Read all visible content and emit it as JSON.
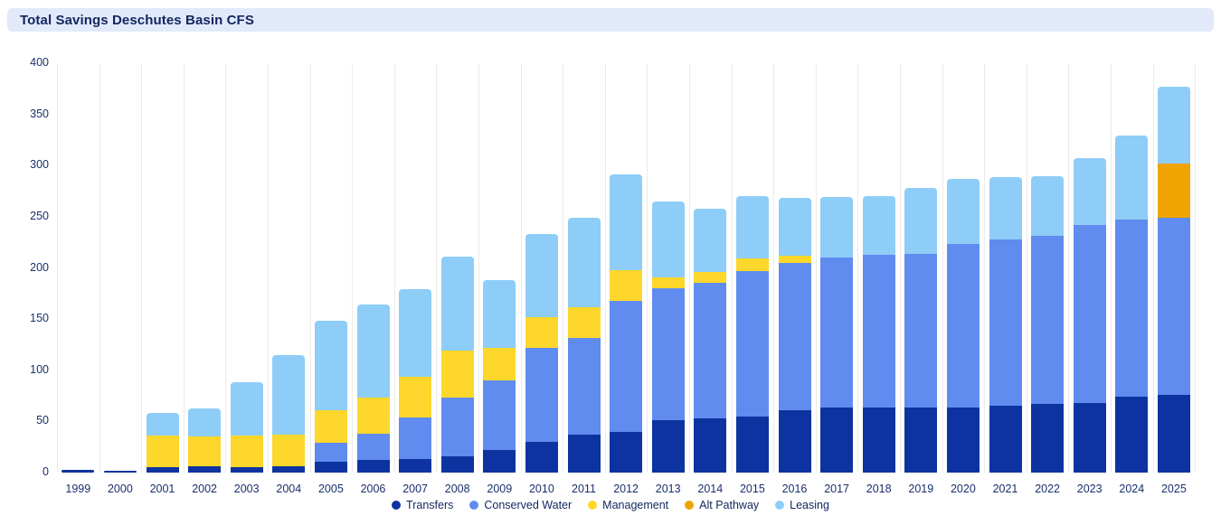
{
  "header": {
    "title": "Total Savings Deschutes Basin CFS"
  },
  "chart_data": {
    "type": "bar",
    "stacked": true,
    "title": "Total Savings Deschutes Basin CFS",
    "xlabel": "",
    "ylabel": "",
    "ylim": [
      0,
      400
    ],
    "yticks": [
      0,
      50,
      100,
      150,
      200,
      250,
      300,
      350,
      400
    ],
    "grid": "vertical-separators-only",
    "legend_position": "bottom",
    "categories": [
      "1999",
      "2000",
      "2001",
      "2002",
      "2003",
      "2004",
      "2005",
      "2006",
      "2007",
      "2008",
      "2009",
      "2010",
      "2011",
      "2012",
      "2013",
      "2014",
      "2015",
      "2016",
      "2017",
      "2018",
      "2019",
      "2020",
      "2021",
      "2022",
      "2023",
      "2024",
      "2025"
    ],
    "series": [
      {
        "name": "Transfers",
        "color": "#0d33a0",
        "values": [
          3,
          2,
          5,
          6,
          5,
          6,
          11,
          12,
          13,
          16,
          22,
          30,
          37,
          40,
          51,
          53,
          55,
          61,
          64,
          64,
          64,
          64,
          65,
          67,
          68,
          74,
          76
        ]
      },
      {
        "name": "Conserved Water",
        "color": "#5f8cee",
        "values": [
          0,
          0,
          0,
          0,
          0,
          0,
          18,
          26,
          41,
          57,
          68,
          92,
          95,
          128,
          129,
          132,
          142,
          144,
          146,
          149,
          150,
          159,
          163,
          164,
          174,
          173,
          173
        ]
      },
      {
        "name": "Management",
        "color": "#fdd72b",
        "values": [
          0,
          0,
          31,
          29,
          31,
          31,
          32,
          35,
          40,
          46,
          32,
          30,
          30,
          30,
          11,
          11,
          12,
          7,
          0,
          0,
          0,
          0,
          0,
          0,
          0,
          0,
          0
        ]
      },
      {
        "name": "Alt Pathway",
        "color": "#f0a404",
        "values": [
          0,
          0,
          0,
          0,
          0,
          0,
          0,
          0,
          0,
          0,
          0,
          0,
          0,
          0,
          0,
          0,
          0,
          0,
          0,
          0,
          0,
          0,
          0,
          0,
          0,
          0,
          53
        ]
      },
      {
        "name": "Leasing",
        "color": "#8ecdf7",
        "values": [
          0,
          0,
          22,
          28,
          52,
          78,
          87,
          91,
          85,
          92,
          66,
          81,
          87,
          93,
          74,
          62,
          61,
          56,
          59,
          57,
          64,
          64,
          61,
          59,
          65,
          82,
          75
        ]
      }
    ],
    "totals": [
      3,
      2,
      58,
      63,
      88,
      115,
      148,
      164,
      179,
      211,
      188,
      233,
      249,
      291,
      265,
      258,
      270,
      268,
      269,
      270,
      278,
      287,
      289,
      290,
      307,
      329,
      377
    ]
  },
  "colors": {
    "header_band": "#e2e9fb",
    "title_text": "#12265e",
    "axis_text": "#1b2f6d",
    "separator": "#ebebeb",
    "background": "#ffffff"
  }
}
